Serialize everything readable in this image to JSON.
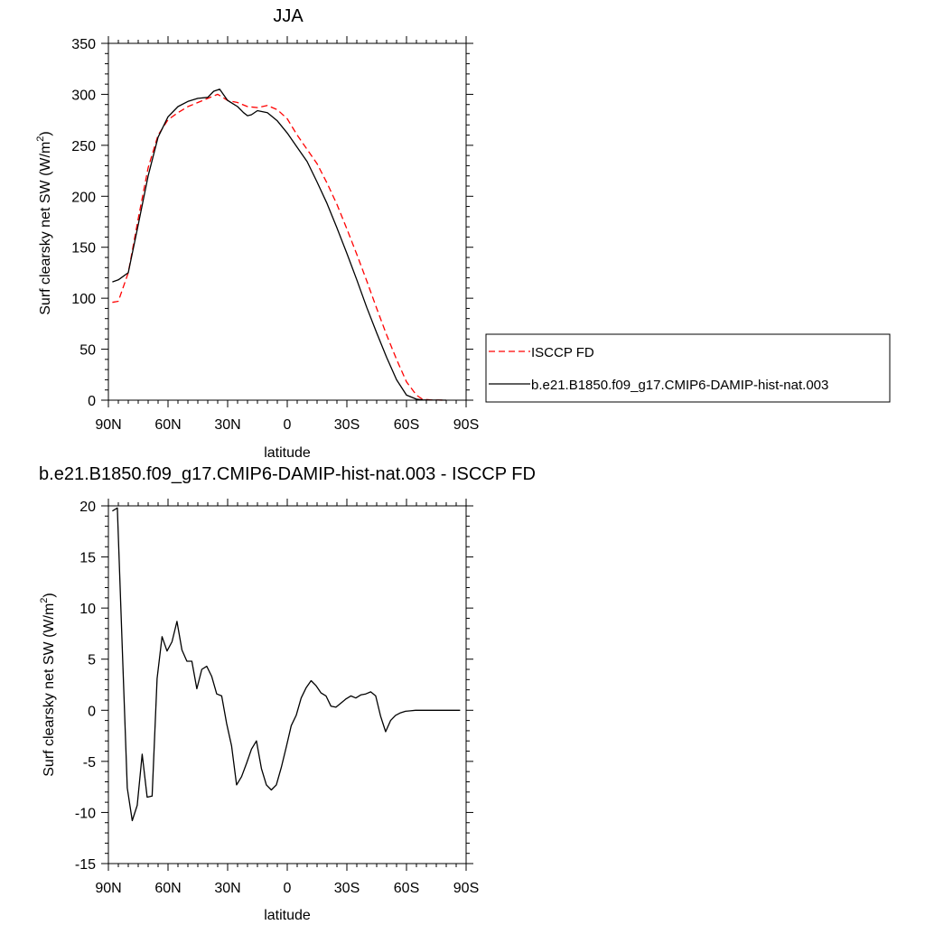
{
  "chart_data": [
    {
      "type": "line",
      "title": "JJA",
      "xlabel": "latitude",
      "ylabel": "Surf clearsky net SW (W/m",
      "ylabel_sup": "2",
      "ylabel_close": ")",
      "xlim": [
        90,
        -90
      ],
      "ylim": [
        0,
        350
      ],
      "xticks": [
        90,
        60,
        30,
        0,
        -30,
        -60,
        -90
      ],
      "xtick_labels": [
        "90N",
        "60N",
        "30N",
        "0",
        "30S",
        "60S",
        "90S"
      ],
      "yticks": [
        0,
        50,
        100,
        150,
        200,
        250,
        300,
        350
      ],
      "ytick_labels": [
        "0",
        "50",
        "100",
        "150",
        "200",
        "250",
        "300",
        "350"
      ],
      "legend_position": "right",
      "series": [
        {
          "name": "ISCCP FD",
          "color": "#ff0000",
          "style": "dashed",
          "x": [
            88,
            85,
            80,
            75,
            70,
            65,
            60,
            55,
            50,
            45,
            40,
            35,
            30,
            25,
            20,
            15,
            10,
            5,
            0,
            -5,
            -10,
            -15,
            -20,
            -25,
            -30,
            -35,
            -40,
            -45,
            -50,
            -55,
            -60,
            -65,
            -68,
            -72,
            -76,
            -80
          ],
          "y": [
            96,
            97,
            125,
            178,
            228,
            260,
            275,
            282,
            288,
            292,
            296,
            300,
            294,
            292,
            288,
            287,
            289,
            285,
            276,
            260,
            246,
            232,
            213,
            192,
            168,
            143,
            117,
            90,
            64,
            40,
            18,
            5,
            1,
            0.3,
            0.1,
            0
          ]
        },
        {
          "name": "b.e21.B1850.f09_g17.CMIP6-DAMIP-hist-nat.003",
          "color": "#000000",
          "style": "solid",
          "x": [
            88,
            85,
            80,
            75,
            70,
            65,
            60,
            55,
            50,
            45,
            40,
            37,
            34,
            30,
            25,
            22,
            20,
            18,
            15,
            10,
            5,
            0,
            -5,
            -10,
            -15,
            -20,
            -25,
            -30,
            -35,
            -40,
            -45,
            -50,
            -55,
            -60,
            -65,
            -68,
            -72,
            -76,
            -80
          ],
          "y": [
            116,
            118,
            125,
            172,
            220,
            258,
            278,
            288,
            293,
            296,
            297,
            303,
            305,
            294,
            288,
            282,
            279,
            280,
            284,
            282,
            274,
            262,
            248,
            234,
            214,
            193,
            169,
            144,
            118,
            91,
            66,
            42,
            20,
            5,
            1,
            0.3,
            0.1,
            0.05,
            0
          ]
        }
      ]
    },
    {
      "type": "line",
      "title": "b.e21.B1850.f09_g17.CMIP6-DAMIP-hist-nat.003 - ISCCP FD",
      "xlabel": "latitude",
      "ylabel": "Surf clearsky net SW (W/m",
      "ylabel_sup": "2",
      "ylabel_close": ")",
      "xlim": [
        90,
        -90
      ],
      "ylim": [
        -15,
        20
      ],
      "xticks": [
        90,
        60,
        30,
        0,
        -30,
        -60,
        -90
      ],
      "xtick_labels": [
        "90N",
        "60N",
        "30N",
        "0",
        "30S",
        "60S",
        "90S"
      ],
      "yticks": [
        -15,
        -10,
        -5,
        0,
        5,
        10,
        15,
        20
      ],
      "ytick_labels": [
        "-15",
        "-10",
        "-5",
        "0",
        "5",
        "10",
        "15",
        "20"
      ],
      "series": [
        {
          "color": "#000000",
          "style": "solid",
          "x": [
            88,
            85.5,
            83,
            80.5,
            78,
            75.5,
            73,
            70.5,
            68,
            65.5,
            63,
            60.5,
            58,
            55.5,
            53,
            50.5,
            48,
            45.5,
            43,
            40.5,
            38,
            35.5,
            33,
            30.5,
            28,
            25.5,
            23,
            20.5,
            18,
            15.5,
            13,
            10.5,
            8,
            5.5,
            3,
            0.5,
            -2,
            -4.5,
            -7,
            -9.5,
            -12,
            -14.5,
            -17,
            -19.5,
            -22,
            -24.5,
            -27,
            -29.5,
            -32,
            -34.5,
            -37,
            -39.5,
            -42,
            -44.5,
            -47,
            -49.5,
            -52,
            -54.5,
            -57,
            -59.5,
            -62,
            -64.5,
            -67,
            -69.5,
            -72,
            -74.5,
            -77,
            -79.5,
            -82,
            -84.5,
            -87
          ],
          "y": [
            19.5,
            19.8,
            6,
            -7.6,
            -10.8,
            -9.3,
            -4.3,
            -8.5,
            -8.4,
            3.1,
            7.2,
            5.8,
            6.7,
            8.7,
            5.9,
            4.8,
            4.8,
            2.1,
            4.0,
            4.3,
            3.3,
            1.6,
            1.4,
            -1.3,
            -3.5,
            -7.3,
            -6.5,
            -5.2,
            -3.8,
            -3.0,
            -5.7,
            -7.3,
            -7.8,
            -7.3,
            -5.6,
            -3.6,
            -1.5,
            -0.5,
            1.2,
            2.2,
            2.9,
            2.4,
            1.7,
            1.4,
            0.4,
            0.3,
            0.7,
            1.1,
            1.4,
            1.2,
            1.5,
            1.6,
            1.8,
            1.4,
            -0.6,
            -2.1,
            -1.0,
            -0.5,
            -0.25,
            -0.1,
            -0.05,
            0,
            0,
            0,
            0,
            0,
            0,
            0,
            0,
            0,
            0
          ]
        }
      ]
    }
  ]
}
